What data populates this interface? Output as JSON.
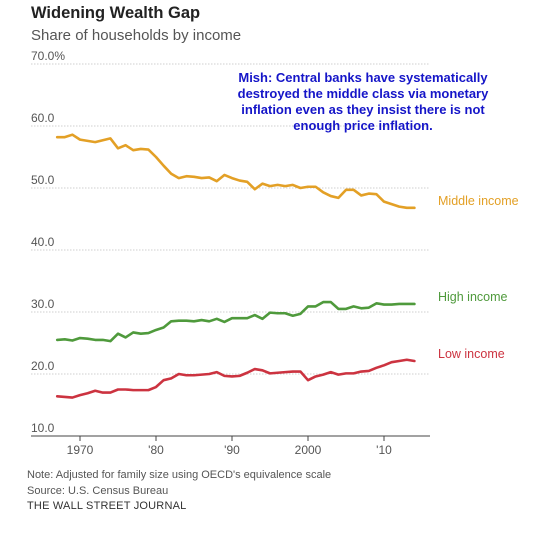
{
  "header": {
    "title": "Widening Wealth Gap",
    "subtitle": "Share of households by income"
  },
  "annotation": "Mish: Central banks have systematically destroyed the middle class via monetary inflation even as they insist there is not enough price inflation.",
  "footer": {
    "note": "Note: Adjusted for family size using OECD's equivalence scale",
    "source": "Source: U.S. Census Bureau",
    "publisher": "THE WALL STREET JOURNAL"
  },
  "chart_data": {
    "type": "line",
    "ylim": [
      10,
      70
    ],
    "xlim": [
      1967,
      2014
    ],
    "y_ticks": [
      10,
      20,
      30,
      40,
      50,
      60,
      70
    ],
    "y_tick_labels": [
      "10.0",
      "20.0",
      "30.0",
      "40.0",
      "50.0",
      "60.0",
      "70.0%"
    ],
    "x_ticks": [
      1970,
      1980,
      1990,
      2000,
      2010
    ],
    "x_tick_labels": [
      "1970",
      "'80",
      "'90",
      "2000",
      "'10"
    ],
    "grid": "horizontal",
    "x": [
      1967,
      1968,
      1969,
      1970,
      1971,
      1972,
      1973,
      1974,
      1975,
      1976,
      1977,
      1978,
      1979,
      1980,
      1981,
      1982,
      1983,
      1984,
      1985,
      1986,
      1987,
      1988,
      1989,
      1990,
      1991,
      1992,
      1993,
      1994,
      1995,
      1996,
      1997,
      1998,
      1999,
      2000,
      2001,
      2002,
      2003,
      2004,
      2005,
      2006,
      2007,
      2008,
      2009,
      2010,
      2011,
      2012,
      2013,
      2014
    ],
    "series": [
      {
        "name": "Middle income",
        "color": "#e3a026",
        "values": [
          58.2,
          58.2,
          58.6,
          57.8,
          57.6,
          57.4,
          57.7,
          58.0,
          56.4,
          56.9,
          56.1,
          56.3,
          56.2,
          55.0,
          53.6,
          52.3,
          51.6,
          51.9,
          51.8,
          51.6,
          51.7,
          51.1,
          52.1,
          51.6,
          51.2,
          51.0,
          49.8,
          50.7,
          50.3,
          50.5,
          50.3,
          50.5,
          50.0,
          50.2,
          50.2,
          49.3,
          48.7,
          48.4,
          49.7,
          49.7,
          48.8,
          49.1,
          49.0,
          47.8,
          47.4,
          47.0,
          46.8,
          46.8
        ]
      },
      {
        "name": "High income",
        "color": "#4f9a3c",
        "values": [
          25.5,
          25.6,
          25.4,
          25.8,
          25.7,
          25.5,
          25.5,
          25.3,
          26.5,
          25.9,
          26.7,
          26.5,
          26.6,
          27.1,
          27.5,
          28.5,
          28.6,
          28.6,
          28.5,
          28.7,
          28.5,
          28.9,
          28.4,
          29.0,
          29.0,
          29.0,
          29.5,
          28.9,
          29.9,
          29.8,
          29.8,
          29.4,
          29.7,
          30.9,
          30.9,
          31.6,
          31.6,
          30.5,
          30.5,
          30.9,
          30.6,
          30.7,
          31.4,
          31.2,
          31.2,
          31.3,
          31.3,
          31.3
        ]
      },
      {
        "name": "Low income",
        "color": "#cc3340",
        "values": [
          16.4,
          16.3,
          16.2,
          16.6,
          16.9,
          17.3,
          17.0,
          17.0,
          17.5,
          17.5,
          17.4,
          17.4,
          17.4,
          17.9,
          19.0,
          19.3,
          20.0,
          19.8,
          19.8,
          19.9,
          20.0,
          20.3,
          19.7,
          19.6,
          19.7,
          20.2,
          20.8,
          20.6,
          20.1,
          20.2,
          20.3,
          20.4,
          20.4,
          19.0,
          19.6,
          19.9,
          20.3,
          19.9,
          20.1,
          20.1,
          20.4,
          20.5,
          21.0,
          21.4,
          21.9,
          22.1,
          22.3,
          22.1
        ]
      }
    ]
  }
}
